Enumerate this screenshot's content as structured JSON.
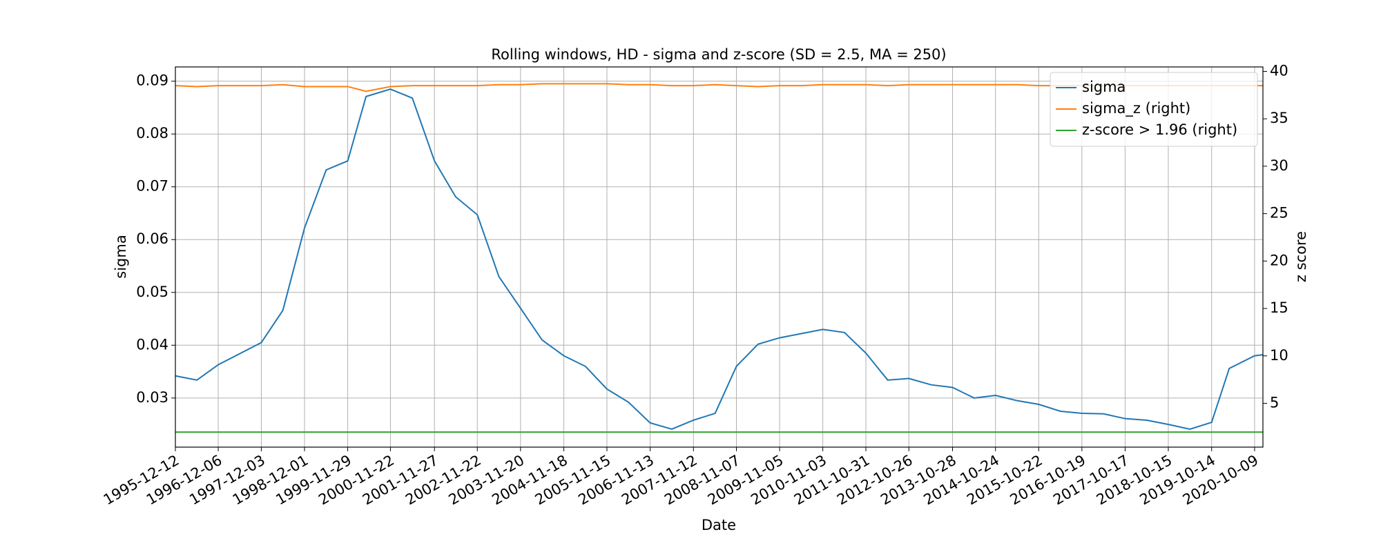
{
  "chart_data": {
    "type": "line",
    "title": "Rolling windows, HD - sigma and z-score (SD = 2.5, MA = 250)",
    "x_label": "Date",
    "y_label": "sigma",
    "y2_label": "z score",
    "x": [
      "1995-12-12",
      "1996-06-10",
      "1996-12-06",
      "1997-12-03",
      "1998-06-02",
      "1998-12-01",
      "1999-06-01",
      "1999-11-29",
      "2000-05-01",
      "2000-11-22",
      "2001-05-25",
      "2001-11-27",
      "2002-05-24",
      "2002-11-22",
      "2003-05-22",
      "2003-11-20",
      "2004-05-19",
      "2004-11-18",
      "2005-05-18",
      "2005-11-15",
      "2006-05-15",
      "2006-11-13",
      "2007-05-14",
      "2007-11-12",
      "2008-05-12",
      "2008-11-07",
      "2009-05-08",
      "2009-11-05",
      "2010-05-06",
      "2010-11-03",
      "2011-05-04",
      "2011-10-31",
      "2012-05-01",
      "2012-10-26",
      "2013-05-01",
      "2013-10-28",
      "2014-04-28",
      "2014-10-24",
      "2015-04-24",
      "2015-10-22",
      "2016-04-21",
      "2016-10-19",
      "2017-04-19",
      "2017-10-17",
      "2018-04-17",
      "2018-10-15",
      "2019-04-15",
      "2019-10-14",
      "2020-03-10",
      "2020-05-11",
      "2020-10-09",
      "2020-12-18"
    ],
    "series": [
      {
        "name": "sigma",
        "color": "#1f77b4",
        "axis": "y",
        "values": [
          0.0342,
          0.0334,
          0.0363,
          0.0405,
          0.0466,
          0.0622,
          0.0732,
          0.0749,
          0.0871,
          0.0885,
          0.0868,
          0.0749,
          0.0681,
          0.0647,
          0.053,
          0.047,
          0.041,
          0.038,
          0.036,
          0.0317,
          0.0292,
          0.0253,
          0.0241,
          0.0258,
          0.0271,
          0.036,
          0.0402,
          0.0414,
          0.0422,
          0.043,
          0.0424,
          0.0385,
          0.0334,
          0.0337,
          0.0325,
          0.032,
          0.03,
          0.0305,
          0.0295,
          0.0288,
          0.0275,
          0.0271,
          0.027,
          0.0261,
          0.0258,
          0.025,
          0.0241,
          0.0254,
          0.0356,
          0.0363,
          0.038,
          0.0382
        ]
      },
      {
        "name": "sigma_z (right)",
        "color": "#ff7f0e",
        "axis": "y2",
        "values": [
          38.5,
          38.4,
          38.5,
          38.5,
          38.6,
          38.4,
          38.4,
          38.4,
          37.9,
          38.4,
          38.5,
          38.5,
          38.5,
          38.5,
          38.6,
          38.6,
          38.7,
          38.7,
          38.7,
          38.7,
          38.6,
          38.6,
          38.5,
          38.5,
          38.6,
          38.5,
          38.4,
          38.5,
          38.5,
          38.6,
          38.6,
          38.6,
          38.5,
          38.6,
          38.6,
          38.6,
          38.6,
          38.6,
          38.6,
          38.5,
          38.5,
          38.5,
          38.5,
          38.5,
          38.5,
          38.5,
          38.5,
          38.5,
          38.5,
          38.5,
          38.5,
          38.5
        ]
      },
      {
        "name": "z-score > 1.96 (right)",
        "color": "#2ca02c",
        "axis": "y2",
        "values": [
          1.96,
          1.96,
          1.96,
          1.96,
          1.96,
          1.96,
          1.96,
          1.96,
          1.96,
          1.96,
          1.96,
          1.96,
          1.96,
          1.96,
          1.96,
          1.96,
          1.96,
          1.96,
          1.96,
          1.96,
          1.96,
          1.96,
          1.96,
          1.96,
          1.96,
          1.96,
          1.96,
          1.96,
          1.96,
          1.96,
          1.96,
          1.96,
          1.96,
          1.96,
          1.96,
          1.96,
          1.96,
          1.96,
          1.96,
          1.96,
          1.96,
          1.96,
          1.96,
          1.96,
          1.96,
          1.96,
          1.96,
          1.96,
          1.96,
          1.96,
          1.96,
          1.96
        ]
      }
    ],
    "xlim": [
      "1995-12-12",
      "2020-12-18"
    ],
    "xticks": [
      "1995-12-12",
      "1996-12-06",
      "1997-12-03",
      "1998-12-01",
      "1999-11-29",
      "2000-11-22",
      "2001-11-27",
      "2002-11-22",
      "2003-11-20",
      "2004-11-18",
      "2005-11-15",
      "2006-11-13",
      "2007-11-12",
      "2008-11-07",
      "2009-11-05",
      "2010-11-03",
      "2011-10-31",
      "2012-10-26",
      "2013-10-28",
      "2014-10-24",
      "2015-10-22",
      "2016-10-19",
      "2017-10-17",
      "2018-10-15",
      "2019-10-14",
      "2020-10-09"
    ],
    "ylim": [
      0.0207,
      0.0927
    ],
    "yticks": [
      0.03,
      0.04,
      0.05,
      0.06,
      0.07,
      0.08,
      0.09
    ],
    "y2lim": [
      0.38,
      40.47
    ],
    "y2ticks": [
      5,
      10,
      15,
      20,
      25,
      30,
      35,
      40
    ],
    "grid": true,
    "legend": "upper-right"
  }
}
